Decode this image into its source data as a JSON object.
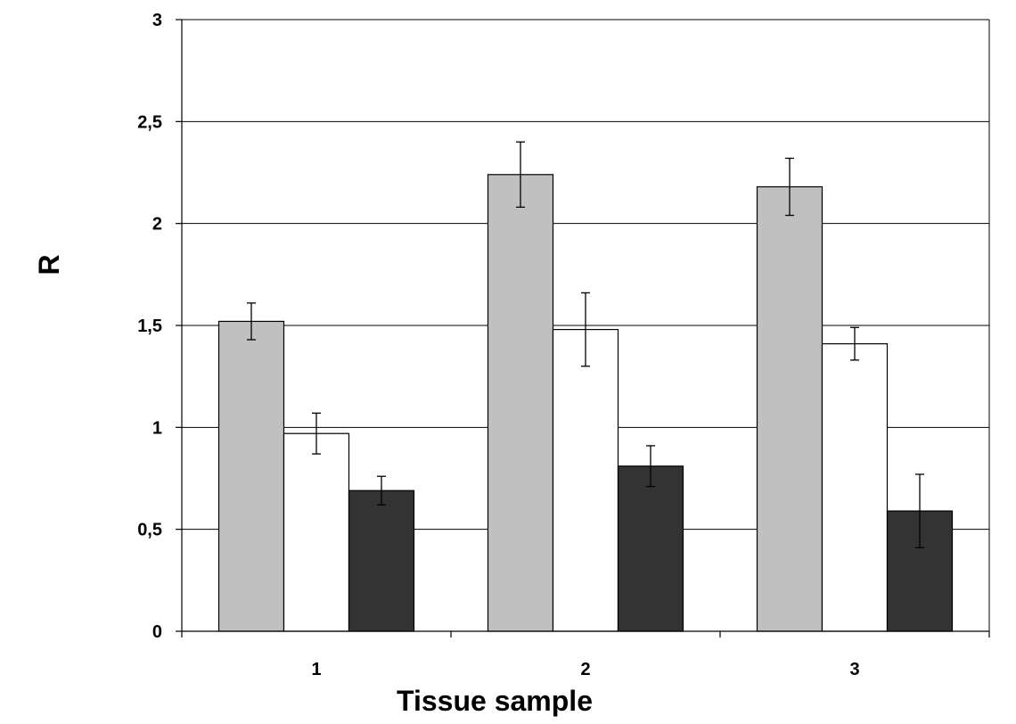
{
  "chart_data": {
    "type": "bar",
    "title": "",
    "xlabel": "Tissue sample",
    "ylabel": "R",
    "categories": [
      "1",
      "2",
      "3"
    ],
    "ylim": [
      0,
      3
    ],
    "yticks": [
      "0",
      "0,5",
      "1",
      "1,5",
      "2",
      "2,5",
      "3"
    ],
    "ytick_values": [
      0,
      0.5,
      1,
      1.5,
      2,
      2.5,
      3
    ],
    "grid": true,
    "legend": "none",
    "series": [
      {
        "color": "#c0c0c0",
        "values": [
          1.52,
          2.24,
          2.18
        ],
        "errors": [
          0.09,
          0.16,
          0.14
        ]
      },
      {
        "color": "#ffffff",
        "values": [
          0.97,
          1.48,
          1.41
        ],
        "errors": [
          0.1,
          0.18,
          0.08
        ]
      },
      {
        "color": "#333333",
        "values": [
          0.69,
          0.81,
          0.59
        ],
        "errors": [
          0.07,
          0.1,
          0.18
        ]
      }
    ]
  }
}
